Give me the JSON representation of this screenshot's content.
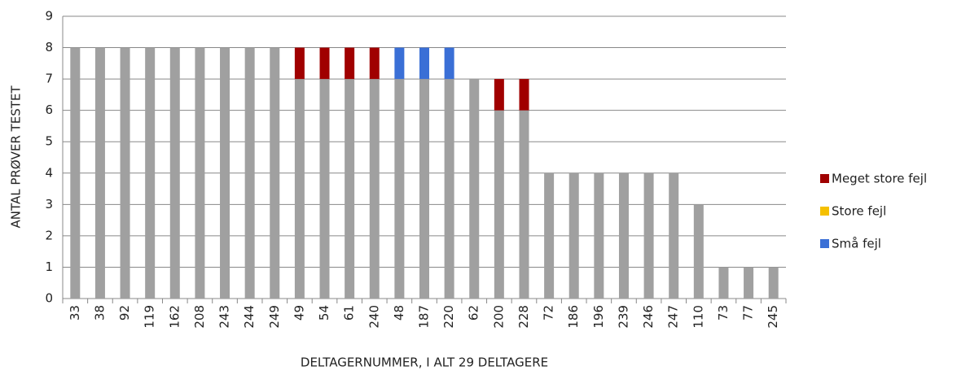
{
  "chart_data": {
    "type": "stacked_bar",
    "ylabel": "ANTAL PRØVER TESTET",
    "xlabel": "DELTAGERNUMMER, I ALT 29 DELTAGERE",
    "categories": [
      "33",
      "38",
      "92",
      "119",
      "162",
      "208",
      "243",
      "244",
      "249",
      "49",
      "54",
      "61",
      "240",
      "48",
      "187",
      "220",
      "62",
      "200",
      "228",
      "72",
      "186",
      "196",
      "239",
      "246",
      "247",
      "110",
      "73",
      "77",
      "245"
    ],
    "series": [
      {
        "color": "#a0a0a0",
        "values": [
          8,
          8,
          8,
          8,
          8,
          8,
          8,
          8,
          8,
          7,
          7,
          7,
          7,
          7,
          7,
          7,
          7,
          6,
          6,
          4,
          4,
          4,
          4,
          4,
          4,
          3,
          1,
          1,
          1
        ]
      },
      {
        "name": "Små fejl",
        "color": "#3a6fd6",
        "values": [
          0,
          0,
          0,
          0,
          0,
          0,
          0,
          0,
          0,
          0,
          0,
          0,
          0,
          1,
          1,
          1,
          0,
          0,
          0,
          0,
          0,
          0,
          0,
          0,
          0,
          0,
          0,
          0,
          0
        ]
      },
      {
        "name": "Store fejl",
        "color": "#f5c000",
        "values": [
          0,
          0,
          0,
          0,
          0,
          0,
          0,
          0,
          0,
          0,
          0,
          0,
          0,
          0,
          0,
          0,
          0,
          0,
          0,
          0,
          0,
          0,
          0,
          0,
          0,
          0,
          0,
          0,
          0
        ]
      },
      {
        "name": "Meget store fejl",
        "color": "#a00000",
        "values": [
          0,
          0,
          0,
          0,
          0,
          0,
          0,
          0,
          0,
          1,
          1,
          1,
          1,
          0,
          0,
          0,
          0,
          1,
          1,
          0,
          0,
          0,
          0,
          0,
          0,
          0,
          0,
          0,
          0
        ]
      }
    ],
    "ylim": [
      0,
      9
    ],
    "yticks": [
      0,
      1,
      2,
      3,
      4,
      5,
      6,
      7,
      8,
      9
    ],
    "grid": true
  }
}
